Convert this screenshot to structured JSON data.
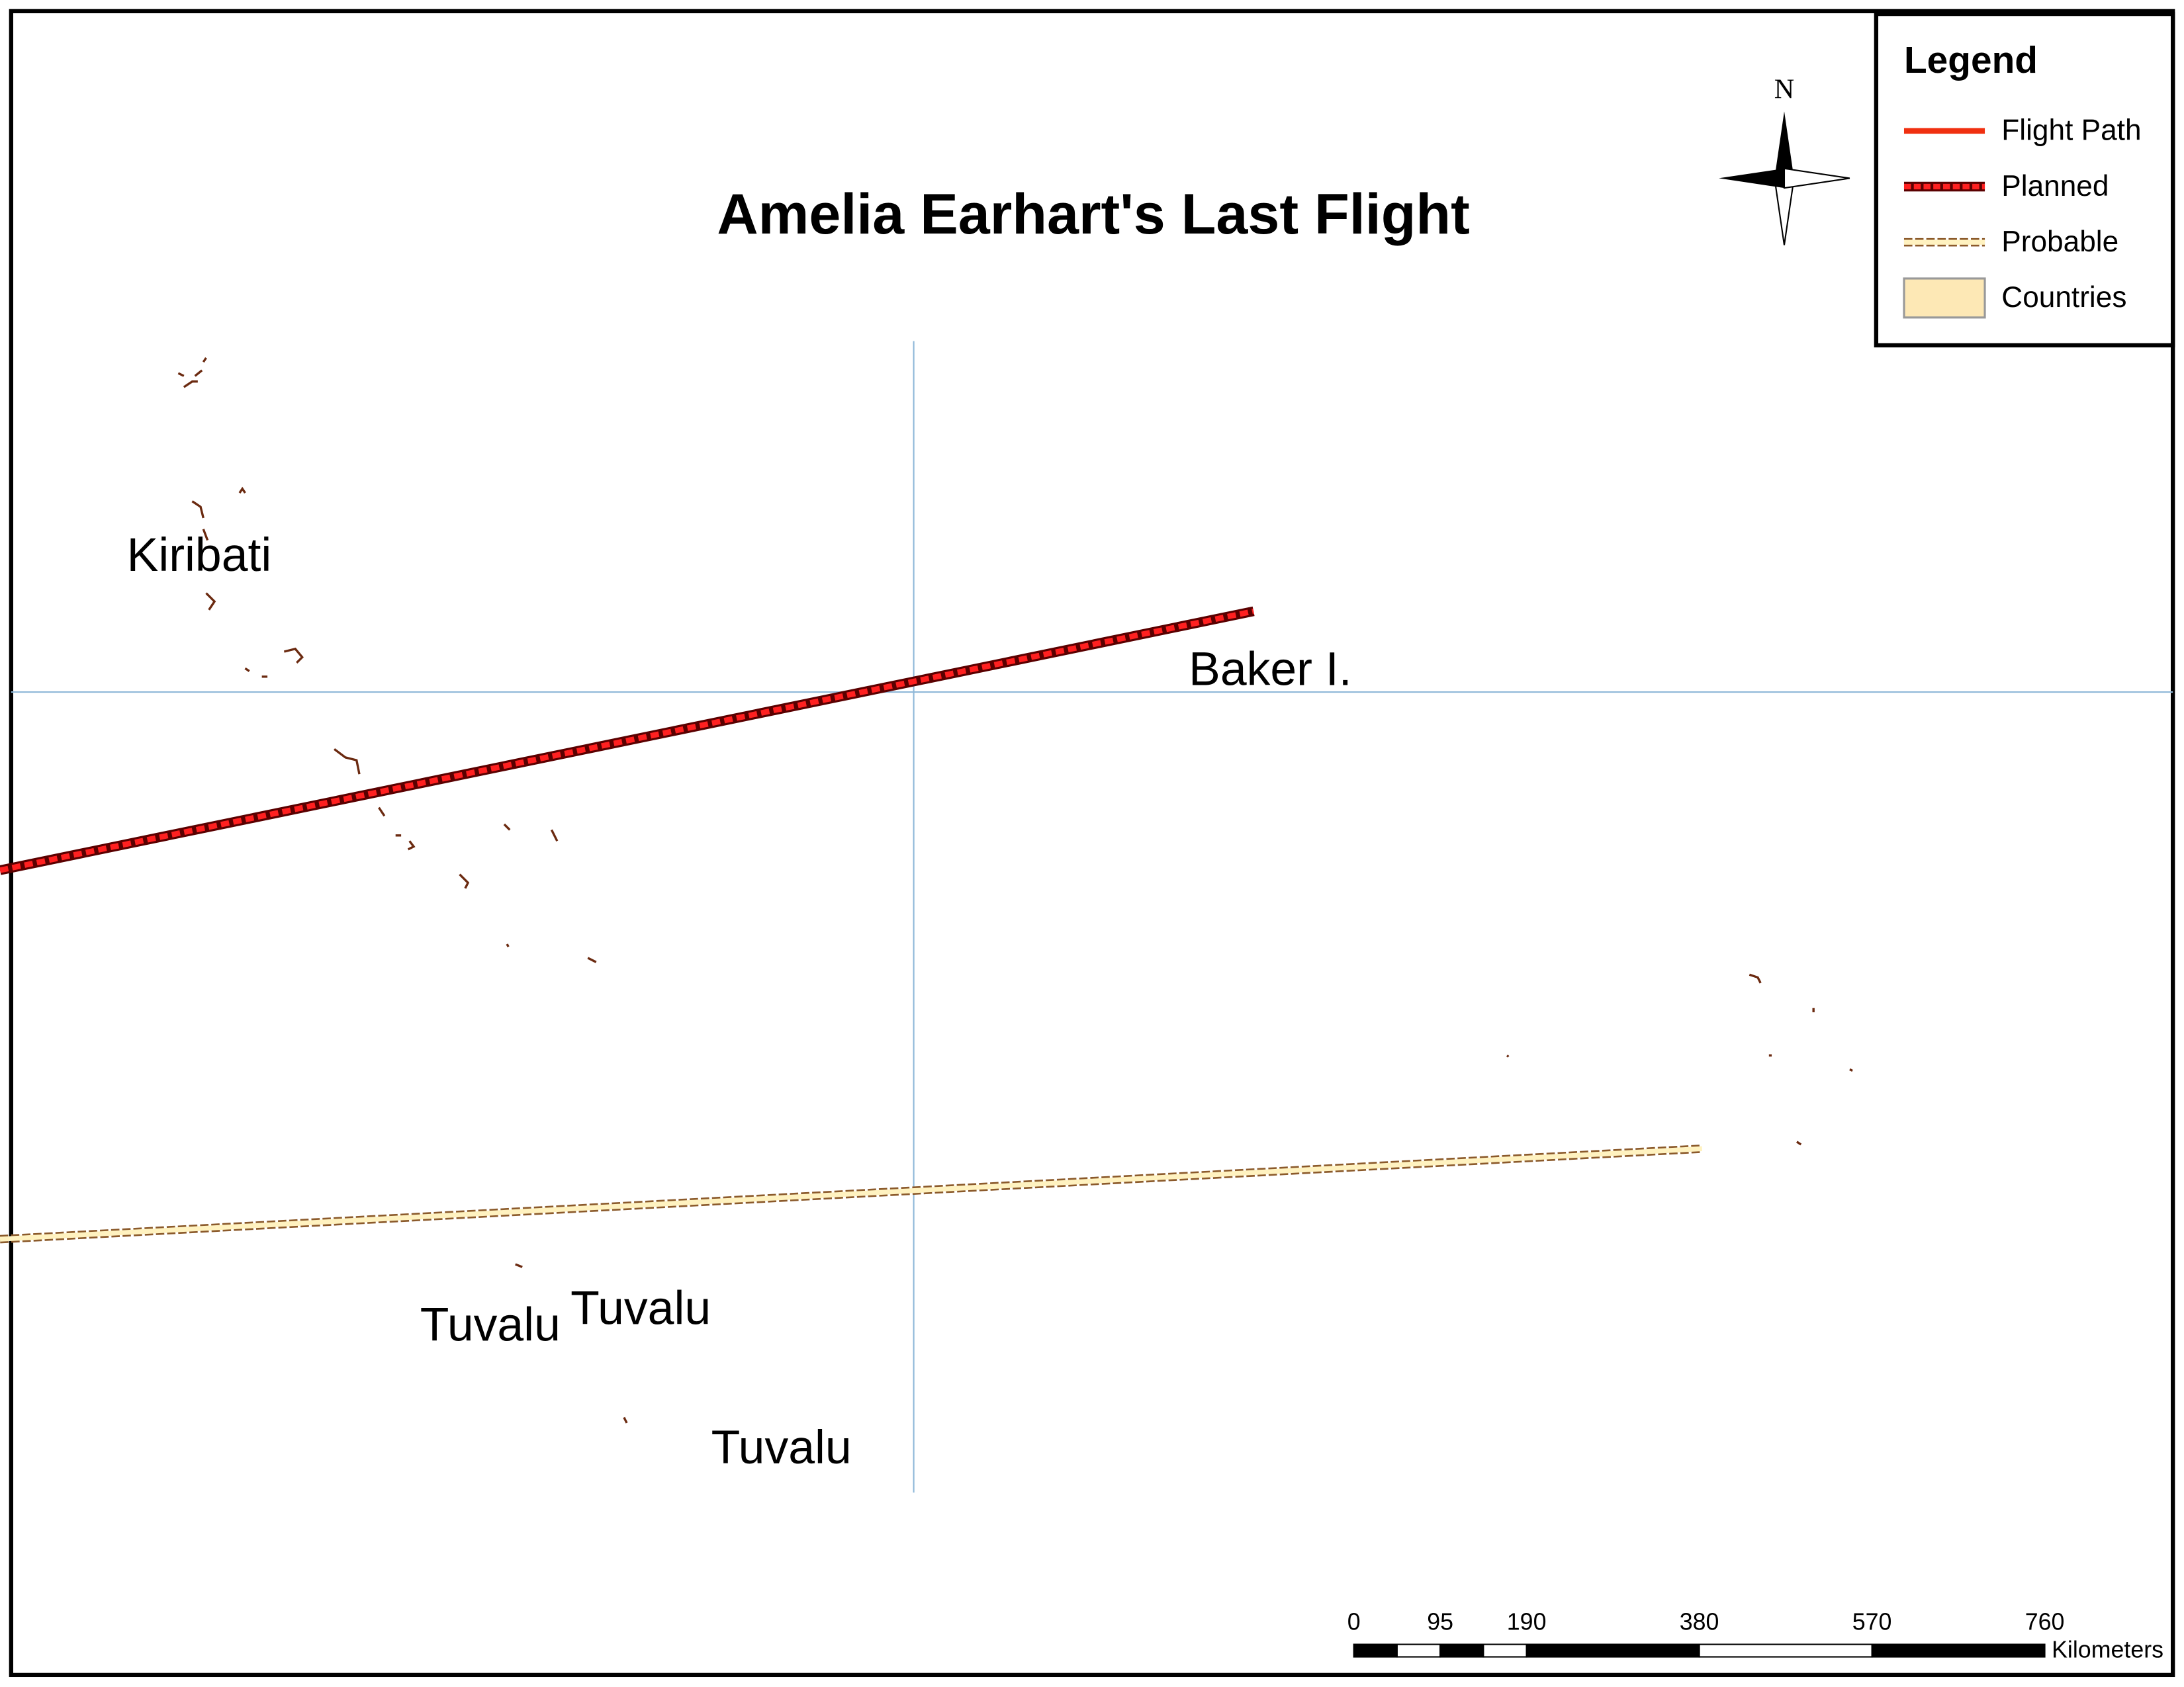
{
  "map": {
    "title": "Amelia Earhart's Last Flight",
    "north": "N",
    "legend": {
      "title": "Legend",
      "items": [
        "Flight Path",
        "Planned",
        "Probable",
        "Countries"
      ]
    },
    "labels": [
      "Kiribati",
      "Baker I.",
      "Tuvalu",
      "Tuvalu",
      "Tuvalu"
    ],
    "scale_bar": {
      "ticks": [
        0,
        95,
        190,
        380,
        570,
        760
      ],
      "unit": "Kilometers"
    }
  }
}
